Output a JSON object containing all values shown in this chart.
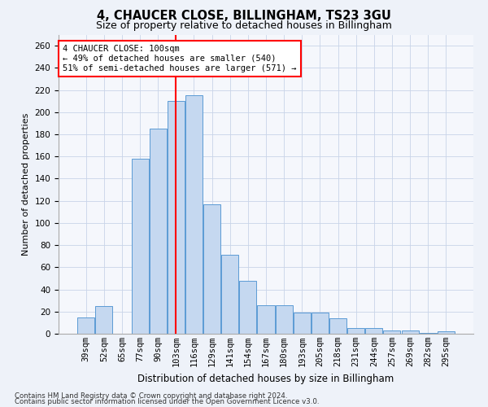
{
  "title": "4, CHAUCER CLOSE, BILLINGHAM, TS23 3GU",
  "subtitle": "Size of property relative to detached houses in Billingham",
  "xlabel": "Distribution of detached houses by size in Billingham",
  "ylabel": "Number of detached properties",
  "categories": [
    "39sqm",
    "52sqm",
    "65sqm",
    "77sqm",
    "90sqm",
    "103sqm",
    "116sqm",
    "129sqm",
    "141sqm",
    "154sqm",
    "167sqm",
    "180sqm",
    "193sqm",
    "205sqm",
    "218sqm",
    "231sqm",
    "244sqm",
    "257sqm",
    "269sqm",
    "282sqm",
    "295sqm"
  ],
  "values": [
    15,
    25,
    0,
    158,
    185,
    210,
    215,
    117,
    71,
    48,
    26,
    26,
    19,
    19,
    14,
    5,
    5,
    3,
    3,
    1,
    2
  ],
  "bar_color": "#c5d8f0",
  "bar_edge_color": "#5b9bd5",
  "vline_x_index": 5,
  "vline_color": "red",
  "annotation_text": "4 CHAUCER CLOSE: 100sqm\n← 49% of detached houses are smaller (540)\n51% of semi-detached houses are larger (571) →",
  "annotation_box_facecolor": "white",
  "annotation_box_edgecolor": "red",
  "ylim": [
    0,
    270
  ],
  "yticks": [
    0,
    20,
    40,
    60,
    80,
    100,
    120,
    140,
    160,
    180,
    200,
    220,
    240,
    260
  ],
  "footer_line1": "Contains HM Land Registry data © Crown copyright and database right 2024.",
  "footer_line2": "Contains public sector information licensed under the Open Government Licence v3.0.",
  "bg_color": "#eef2f9",
  "plot_bg_color": "#f5f7fc",
  "grid_color": "#c8d4e8",
  "title_fontsize": 10.5,
  "subtitle_fontsize": 9,
  "ylabel_fontsize": 8,
  "xlabel_fontsize": 8.5,
  "tick_fontsize": 7.5,
  "annotation_fontsize": 7.5
}
